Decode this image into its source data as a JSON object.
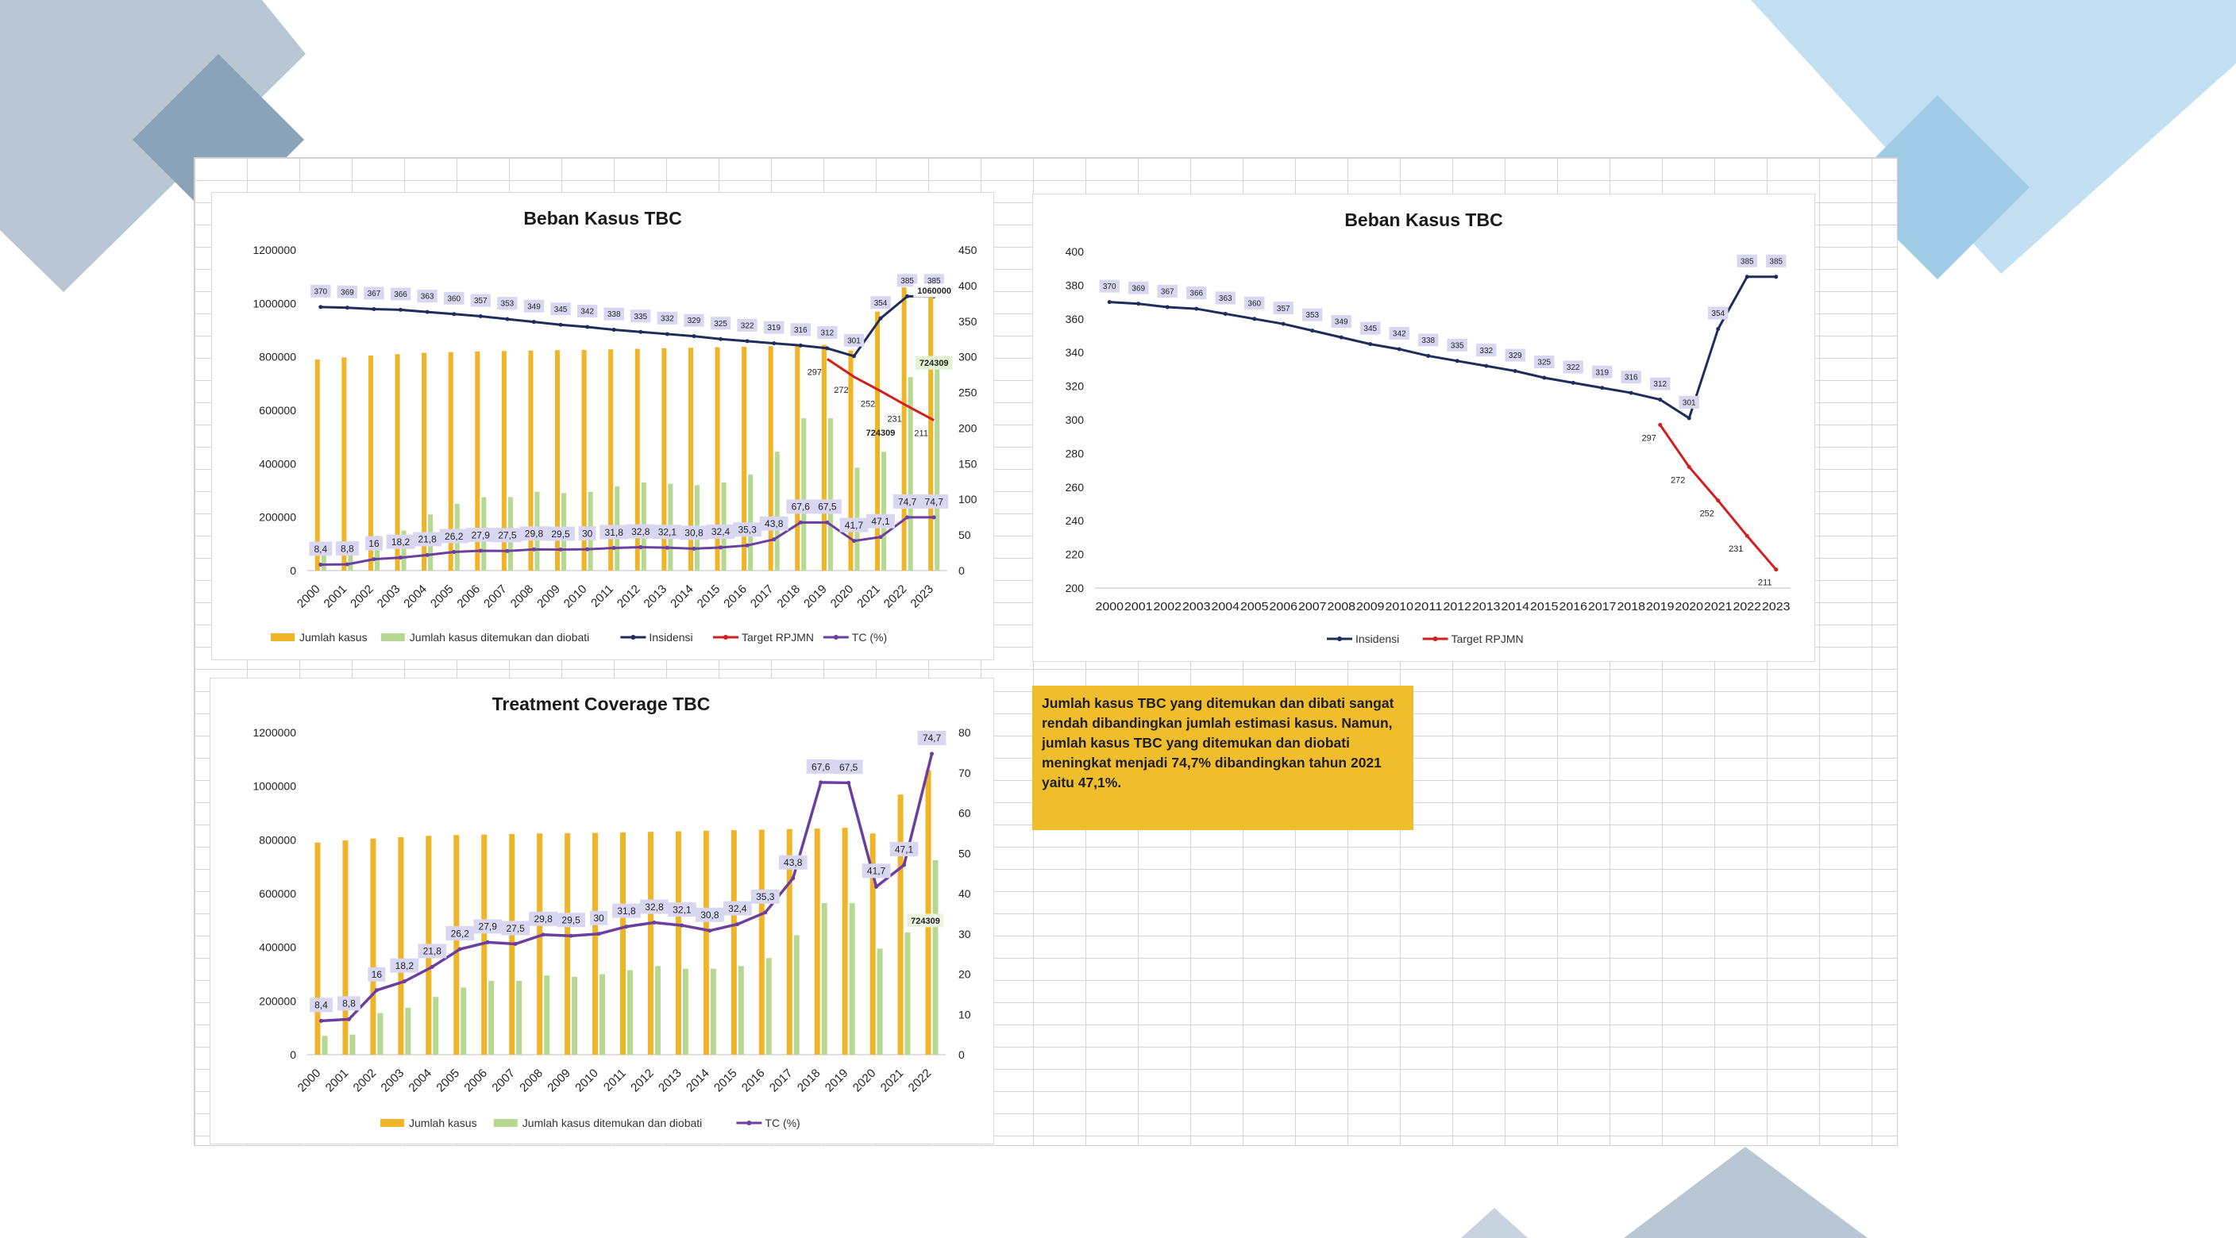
{
  "decor": {
    "colors": {
      "slate": "#b7c6d3",
      "slate_dark": "#8aa3b9",
      "sky": "#bcdcef",
      "sky_dark": "#9cc9e6"
    }
  },
  "note": {
    "text": "Jumlah kasus TBC yang ditemukan dan dibati sangat rendah dibandingkan jumlah estimasi kasus.  Namun, jumlah kasus TBC yang ditemukan dan diobati meningkat menjadi 74,7% dibandingkan tahun 2021 yaitu 47,1%.",
    "background": "#f0bd2d"
  },
  "colors": {
    "jumlah_kasus": "#f0b429",
    "ditemukan": "#b7d892",
    "insidensi": "#1f2d5c",
    "target": "#d22020",
    "tc": "#6a3fa0",
    "label_bg": "#d9d6f2"
  },
  "chart_data": [
    {
      "id": "beban1",
      "type": "bar",
      "title": "Beban Kasus TBC",
      "categories": [
        "2000",
        "2001",
        "2002",
        "2003",
        "2004",
        "2005",
        "2006",
        "2007",
        "2008",
        "2009",
        "2010",
        "2011",
        "2012",
        "2013",
        "2014",
        "2015",
        "2016",
        "2017",
        "2018",
        "2019",
        "2020",
        "2021",
        "2022",
        "2023"
      ],
      "ylim": [
        0,
        1200000
      ],
      "yticks": [
        "0",
        "200000",
        "400000",
        "600000",
        "800000",
        "1000000",
        "1200000"
      ],
      "y2lim": [
        0,
        450
      ],
      "y2ticks": [
        "0",
        "50",
        "100",
        "150",
        "200",
        "250",
        "300",
        "350",
        "400",
        "450"
      ],
      "series": [
        {
          "name": "Jumlah kasus",
          "kind": "bar",
          "axis": "y",
          "values": [
            790000,
            798000,
            805000,
            810000,
            815000,
            818000,
            820000,
            822000,
            824000,
            825000,
            826000,
            828000,
            830000,
            832000,
            834000,
            836000,
            838000,
            840000,
            842000,
            845000,
            824000,
            969000,
            1060000,
            1060000
          ]
        },
        {
          "name": "Jumlah kasus ditemukan dan diobati",
          "kind": "bar",
          "axis": "y",
          "values": [
            70000,
            75000,
            130000,
            150000,
            210000,
            250000,
            275000,
            275000,
            295000,
            290000,
            295000,
            315000,
            330000,
            325000,
            320000,
            330000,
            360000,
            445000,
            570000,
            570000,
            385000,
            445000,
            724309,
            795000
          ]
        },
        {
          "name": "Insidensi",
          "kind": "line",
          "axis": "y2",
          "values": [
            370,
            369,
            367,
            366,
            363,
            360,
            357,
            353,
            349,
            345,
            342,
            338,
            335,
            332,
            329,
            325,
            322,
            319,
            316,
            312,
            301,
            354,
            385,
            385
          ],
          "labels": [
            "370",
            "369",
            "367",
            "366",
            "363",
            "360",
            "357",
            "353",
            "349",
            "345",
            "342",
            "338",
            "335",
            "332",
            "329",
            "325",
            "322",
            "319",
            "316",
            "312",
            "301",
            "354",
            "385",
            "385"
          ]
        },
        {
          "name": "Target RPJMN",
          "kind": "line",
          "axis": "y2",
          "values": [
            null,
            null,
            null,
            null,
            null,
            null,
            null,
            null,
            null,
            null,
            null,
            null,
            null,
            null,
            null,
            null,
            null,
            null,
            null,
            297,
            272,
            252,
            231,
            211
          ],
          "labels": [
            "",
            "",
            "",
            "",
            "",
            "",
            "",
            "",
            "",
            "",
            "",
            "",
            "",
            "",
            "",
            "",
            "",
            "",
            "",
            "297",
            "272",
            "252",
            "231",
            "211"
          ]
        },
        {
          "name": "TC (%)",
          "kind": "line",
          "axis": "y2",
          "values": [
            8.4,
            8.8,
            16,
            18.2,
            21.8,
            26.2,
            27.9,
            27.5,
            29.8,
            29.5,
            30,
            31.8,
            32.8,
            32.1,
            30.8,
            32.4,
            35.3,
            43.8,
            67.6,
            67.5,
            41.7,
            47.1,
            74.7,
            74.7
          ],
          "labels": [
            "8,4",
            "8,8",
            "16",
            "18,2",
            "21,8",
            "26,2",
            "27,9",
            "27,5",
            "29,8",
            "29,5",
            "30",
            "31,8",
            "32,8",
            "32,1",
            "30,8",
            "32,4",
            "35,3",
            "43,8",
            "67,6",
            "67,5",
            "41,7",
            "47,1",
            "74,7",
            "74,7"
          ]
        }
      ],
      "annotations": [
        "1060000",
        "724309",
        "724309"
      ]
    },
    {
      "id": "beban2",
      "type": "line",
      "title": "Beban Kasus TBC",
      "categories": [
        "2000",
        "2001",
        "2002",
        "2003",
        "2004",
        "2005",
        "2006",
        "2007",
        "2008",
        "2009",
        "2010",
        "2011",
        "2012",
        "2013",
        "2014",
        "2015",
        "2016",
        "2017",
        "2018",
        "2019",
        "2020",
        "2021",
        "2022",
        "2023"
      ],
      "ylim": [
        200,
        400
      ],
      "yticks": [
        "200",
        "220",
        "240",
        "260",
        "280",
        "300",
        "320",
        "340",
        "360",
        "380",
        "400"
      ],
      "series": [
        {
          "name": "Insidensi",
          "values": [
            370,
            369,
            367,
            366,
            363,
            360,
            357,
            353,
            349,
            345,
            342,
            338,
            335,
            332,
            329,
            325,
            322,
            319,
            316,
            312,
            301,
            354,
            385,
            385
          ],
          "labels": [
            "370",
            "369",
            "367",
            "366",
            "363",
            "360",
            "357",
            "353",
            "349",
            "345",
            "342",
            "338",
            "335",
            "332",
            "329",
            "325",
            "322",
            "319",
            "316",
            "312",
            "301",
            "354",
            "385",
            "385"
          ]
        },
        {
          "name": "Target RPJMN",
          "values": [
            null,
            null,
            null,
            null,
            null,
            null,
            null,
            null,
            null,
            null,
            null,
            null,
            null,
            null,
            null,
            null,
            null,
            null,
            null,
            297,
            272,
            252,
            231,
            211
          ],
          "labels": [
            "",
            "",
            "",
            "",
            "",
            "",
            "",
            "",
            "",
            "",
            "",
            "",
            "",
            "",
            "",
            "",
            "",
            "",
            "",
            "297",
            "272",
            "252",
            "231",
            "211"
          ]
        }
      ]
    },
    {
      "id": "tc",
      "type": "bar",
      "title": "Treatment Coverage TBC",
      "categories": [
        "2000",
        "2001",
        "2002",
        "2003",
        "2004",
        "2005",
        "2006",
        "2007",
        "2008",
        "2009",
        "2010",
        "2011",
        "2012",
        "2013",
        "2014",
        "2015",
        "2016",
        "2017",
        "2018",
        "2019",
        "2020",
        "2021",
        "2022"
      ],
      "ylim": [
        0,
        1200000
      ],
      "yticks": [
        "0",
        "200000",
        "400000",
        "600000",
        "800000",
        "1000000",
        "1200000"
      ],
      "y2lim": [
        0,
        80
      ],
      "y2ticks": [
        "0",
        "10",
        "20",
        "30",
        "40",
        "50",
        "60",
        "70",
        "80"
      ],
      "series": [
        {
          "name": "Jumlah kasus",
          "kind": "bar",
          "axis": "y",
          "values": [
            790000,
            798000,
            805000,
            810000,
            815000,
            818000,
            820000,
            822000,
            824000,
            825000,
            826000,
            828000,
            830000,
            832000,
            834000,
            836000,
            838000,
            840000,
            842000,
            845000,
            824000,
            969000,
            1060000
          ]
        },
        {
          "name": "Jumlah kasus ditemukan dan diobati",
          "kind": "bar",
          "axis": "y",
          "values": [
            70000,
            75000,
            155000,
            175000,
            215000,
            250000,
            275000,
            275000,
            295000,
            290000,
            300000,
            315000,
            330000,
            320000,
            320000,
            330000,
            360000,
            445000,
            565000,
            565000,
            395000,
            455000,
            724309
          ]
        },
        {
          "name": "TC (%)",
          "kind": "line",
          "axis": "y2",
          "values": [
            8.4,
            8.8,
            16,
            18.2,
            21.8,
            26.2,
            27.9,
            27.5,
            29.8,
            29.5,
            30,
            31.8,
            32.8,
            32.1,
            30.8,
            32.4,
            35.3,
            43.8,
            67.6,
            67.5,
            41.7,
            47.1,
            74.7
          ],
          "labels": [
            "8,4",
            "8,8",
            "16",
            "18,2",
            "21,8",
            "26,2",
            "27,9",
            "27,5",
            "29,8",
            "29,5",
            "30",
            "31,8",
            "32,8",
            "32,1",
            "30,8",
            "32,4",
            "35,3",
            "43,8",
            "67,6",
            "67,5",
            "41,7",
            "47,1",
            "74,7"
          ]
        }
      ],
      "annotations": [
        "724309"
      ]
    }
  ]
}
